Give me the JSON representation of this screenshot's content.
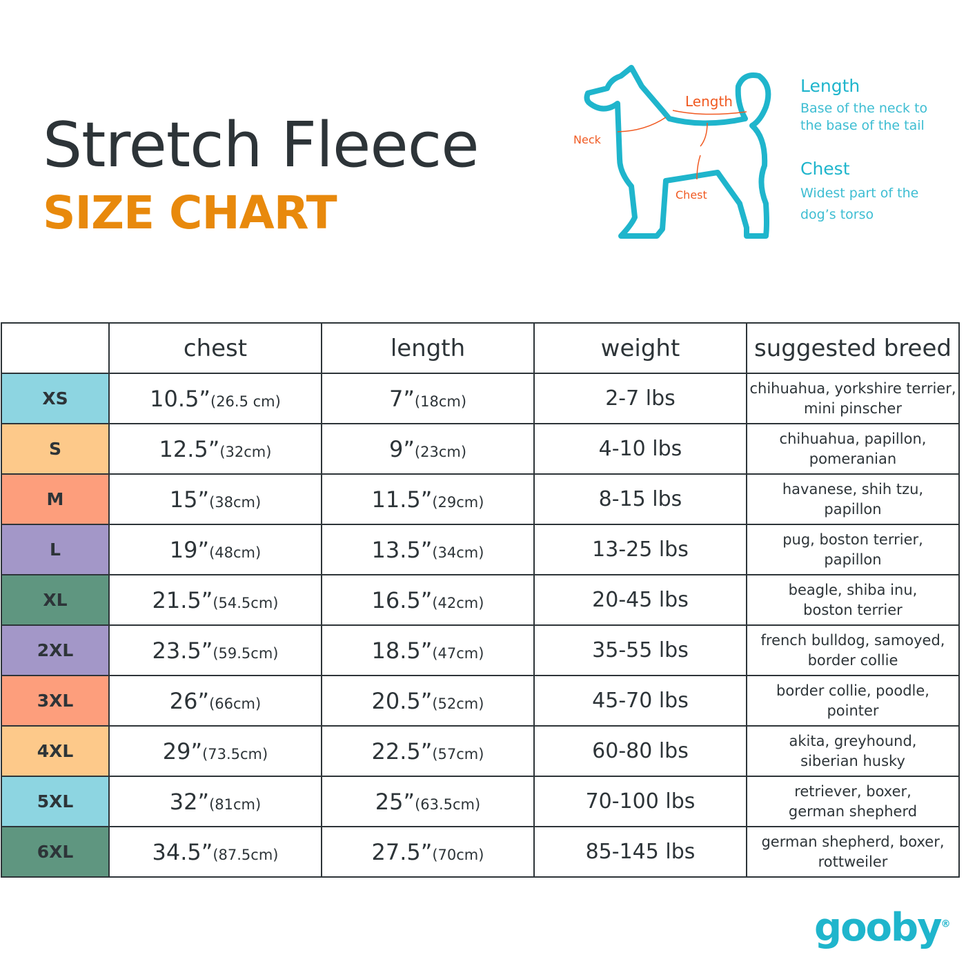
{
  "header": {
    "title": "Stretch Fleece",
    "subtitle": "SIZE CHART"
  },
  "diagram": {
    "neck": "Neck",
    "length": "Length",
    "chest": "Chest"
  },
  "legend": [
    {
      "title": "Length",
      "desc1": "Base of the neck to",
      "desc2": "the base of the tail"
    },
    {
      "title": "Chest",
      "desc1": "Widest part of the",
      "desc2": "dog’s torso"
    }
  ],
  "table": {
    "headers": [
      "",
      "chest",
      "length",
      "weight",
      "suggested breed"
    ],
    "rows": [
      {
        "size": "XS",
        "color": "#8dd5e1",
        "chest": "10.5”",
        "chest_cm": "(26.5 cm)",
        "length": "7”",
        "length_cm": "(18cm)",
        "weight": "2-7 lbs",
        "breed1": "chihuahua, yorkshire terrier,",
        "breed2": "mini pinscher"
      },
      {
        "size": "S",
        "color": "#fdc98a",
        "chest": "12.5”",
        "chest_cm": "(32cm)",
        "length": "9”",
        "length_cm": "(23cm)",
        "weight": "4-10 lbs",
        "breed1": "chihuahua, papillon,",
        "breed2": "pomeranian"
      },
      {
        "size": "M",
        "color": "#fd9e7c",
        "chest": "15”",
        "chest_cm": "(38cm)",
        "length": "11.5”",
        "length_cm": "(29cm)",
        "weight": "8-15 lbs",
        "breed1": "havanese, shih tzu,",
        "breed2": "papillon"
      },
      {
        "size": "L",
        "color": "#a397c8",
        "chest": "19”",
        "chest_cm": "(48cm)",
        "length": "13.5”",
        "length_cm": "(34cm)",
        "weight": "13-25 lbs",
        "breed1": "pug, boston terrier,",
        "breed2": "papillon"
      },
      {
        "size": "XL",
        "color": "#5f9680",
        "chest": "21.5”",
        "chest_cm": "(54.5cm)",
        "length": "16.5”",
        "length_cm": "(42cm)",
        "weight": "20-45 lbs",
        "breed1": "beagle, shiba inu,",
        "breed2": "boston terrier"
      },
      {
        "size": "2XL",
        "color": "#a397c8",
        "chest": "23.5”",
        "chest_cm": "(59.5cm)",
        "length": "18.5”",
        "length_cm": "(47cm)",
        "weight": "35-55 lbs",
        "breed1": "french bulldog, samoyed,",
        "breed2": "border collie"
      },
      {
        "size": "3XL",
        "color": "#fd9e7c",
        "chest": "26”",
        "chest_cm": "(66cm)",
        "length": "20.5”",
        "length_cm": "(52cm)",
        "weight": "45-70 lbs",
        "breed1": "border collie, poodle,",
        "breed2": "pointer"
      },
      {
        "size": "4XL",
        "color": "#fdc98a",
        "chest": "29”",
        "chest_cm": "(73.5cm)",
        "length": "22.5”",
        "length_cm": "(57cm)",
        "weight": "60-80 lbs",
        "breed1": "akita, greyhound,",
        "breed2": "siberian husky"
      },
      {
        "size": "5XL",
        "color": "#8dd5e1",
        "chest": "32”",
        "chest_cm": "(81cm)",
        "length": "25”",
        "length_cm": "(63.5cm)",
        "weight": "70-100 lbs",
        "breed1": "retriever, boxer,",
        "breed2": "german shepherd"
      },
      {
        "size": "6XL",
        "color": "#5f9680",
        "chest": "34.5”",
        "chest_cm": "(87.5cm)",
        "length": "27.5”",
        "length_cm": "(70cm)",
        "weight": "85-145 lbs",
        "breed1": "german shepherd, boxer,",
        "breed2": "rottweiler"
      }
    ]
  },
  "brand": {
    "logo": "gooby",
    "mark": "®"
  },
  "colors": {
    "text": "#2d3438",
    "accent": "#e8890c",
    "teal": "#1fb5cc",
    "arrow": "#f05a22"
  }
}
